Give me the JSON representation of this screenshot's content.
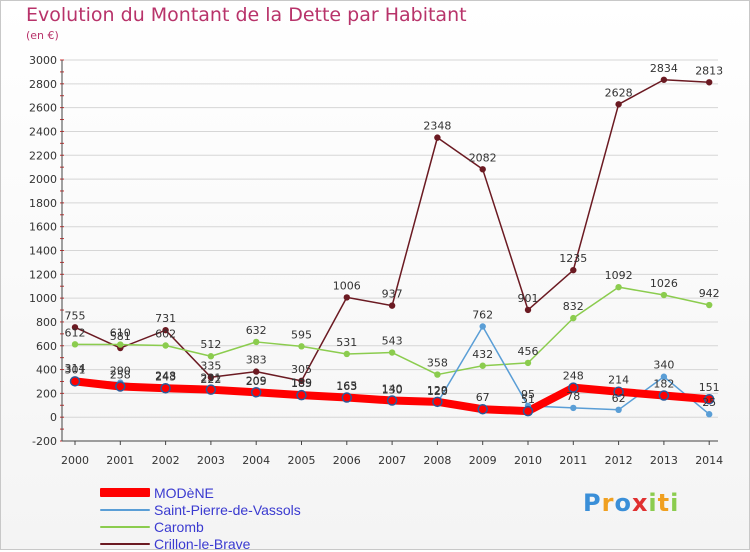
{
  "chart_data": {
    "type": "line",
    "title": "Evolution du Montant de la Dette par Habitant",
    "subtitle": "(en €)",
    "xlabel": "",
    "ylabel": "",
    "ylim": [
      -200,
      3000
    ],
    "yticks": [
      -200,
      0,
      200,
      400,
      600,
      800,
      1000,
      1200,
      1400,
      1600,
      1800,
      2000,
      2200,
      2400,
      2600,
      2800,
      3000
    ],
    "categories": [
      "2000",
      "2001",
      "2002",
      "2003",
      "2004",
      "2005",
      "2006",
      "2007",
      "2008",
      "2009",
      "2010",
      "2011",
      "2012",
      "2013",
      "2014"
    ],
    "series": [
      {
        "name": "Crillon-le-Brave",
        "color": "#6b1a22",
        "values": [
          755,
          581,
          731,
          335,
          383,
          305,
          1006,
          937,
          2348,
          2082,
          901,
          1235,
          2628,
          2834,
          2813
        ],
        "labels": [
          "755",
          "581",
          "731",
          "335",
          "383",
          "305",
          "1006",
          "937",
          "2348",
          "2082",
          "901",
          "1235",
          "2628",
          "2834",
          "2813"
        ]
      },
      {
        "name": "Caromb",
        "color": "#8bcc4e",
        "values": [
          612,
          610,
          602,
          512,
          632,
          595,
          531,
          543,
          358,
          432,
          456,
          832,
          1092,
          1026,
          942
        ],
        "labels": [
          "612",
          "610",
          "602",
          "512",
          "632",
          "595",
          "531",
          "543",
          "358",
          "432",
          "456",
          "832",
          "1092",
          "1026",
          "942"
        ]
      },
      {
        "name": "Saint-Pierre-de-Vassols",
        "color": "#5a9ed6",
        "values": [
          314,
          290,
          248,
          222,
          205,
          189,
          163,
          130,
          120,
          762,
          95,
          78,
          62,
          340,
          25
        ],
        "labels": [
          "314",
          "290",
          "248",
          "222",
          "205",
          "189",
          "163",
          "130",
          "120",
          "762",
          "95",
          "78",
          "62",
          "340",
          "25"
        ]
      },
      {
        "name": "MODèNE",
        "color": "#ff0000",
        "values": [
          301,
          258,
          243,
          231,
          209,
          185,
          165,
          140,
          129,
          67,
          51,
          248,
          214,
          182,
          151
        ],
        "labels": [
          "301",
          "258",
          "243",
          "231",
          "209",
          "185",
          "165",
          "140",
          "129",
          "67",
          "51",
          "248",
          "214",
          "182",
          "151"
        ]
      }
    ]
  },
  "legend": {
    "items": [
      {
        "label": "MODèNE",
        "color": "#ff0000"
      },
      {
        "label": "Saint-Pierre-de-Vassols",
        "color": "#5a9ed6"
      },
      {
        "label": "Caromb",
        "color": "#8bcc4e"
      },
      {
        "label": "Crillon-le-Brave",
        "color": "#6b1a22"
      }
    ]
  },
  "logo": {
    "letters": [
      "P",
      "r",
      "o",
      "x",
      "i",
      "t",
      "i"
    ],
    "colors": [
      "#3a8fd8",
      "#f0a020",
      "#3a8fd8",
      "#e03030",
      "#8bcc4e",
      "#f0a020",
      "#8bcc4e"
    ]
  }
}
